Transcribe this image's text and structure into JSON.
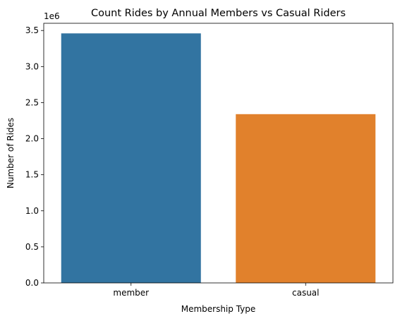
{
  "chart_data": {
    "type": "bar",
    "title": "Count Rides by Annual Members vs Casual Riders",
    "xlabel": "Membership Type",
    "ylabel": "Number of Rides",
    "y_offset_label": "1e6",
    "categories": [
      "member",
      "casual"
    ],
    "values": [
      3460000,
      2340000
    ],
    "colors": [
      "#3274a1",
      "#e1812c"
    ],
    "ylim": [
      0,
      3600000
    ],
    "yticks": [
      0,
      500000,
      1000000,
      1500000,
      2000000,
      2500000,
      3000000,
      3500000
    ],
    "ytick_labels": [
      "0.0",
      "0.5",
      "1.0",
      "1.5",
      "2.0",
      "2.5",
      "3.0",
      "3.5"
    ],
    "grid": false,
    "legend": "none"
  }
}
